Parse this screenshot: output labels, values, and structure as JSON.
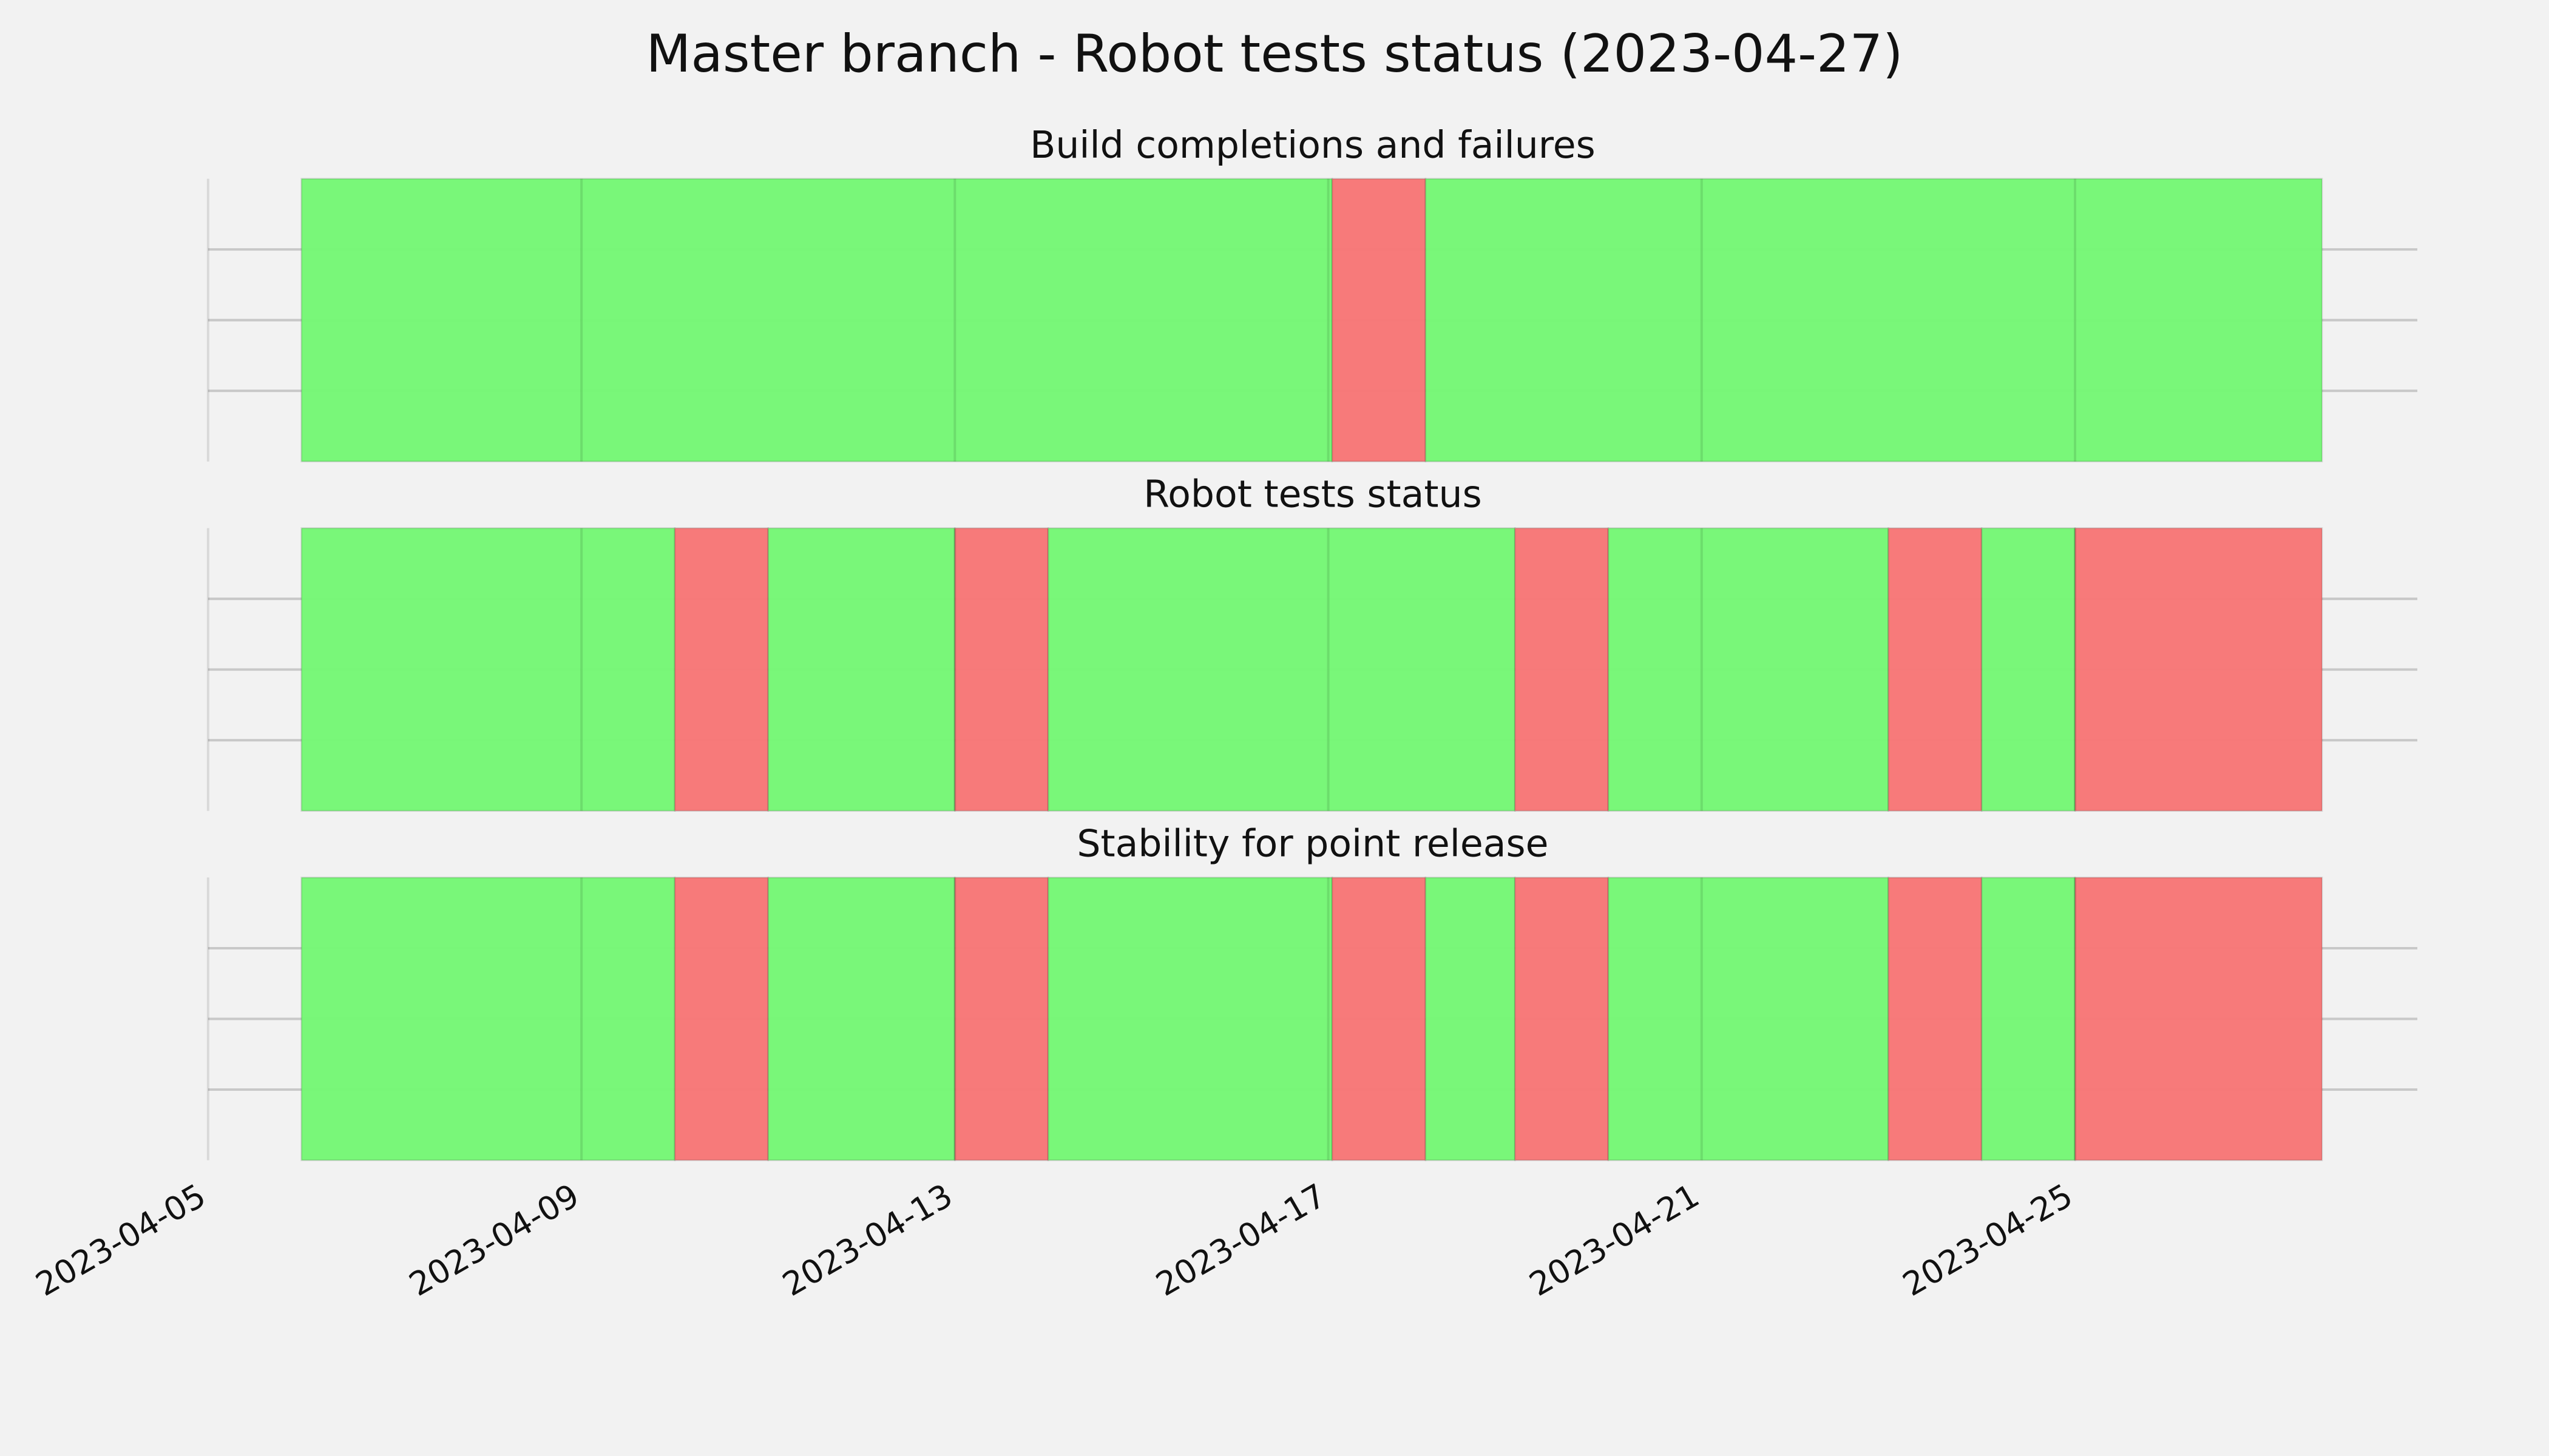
{
  "title": "Master branch - Robot tests status (2023-04-27)",
  "chart_data": [
    {
      "type": "timeline",
      "title": "Build completions and failures",
      "segments": [
        {
          "start": "2023-04-06",
          "end": "2023-04-17T01:00",
          "color": "#76f776"
        },
        {
          "start": "2023-04-17T01:00",
          "end": "2023-04-18T01:00",
          "color": "#f77777"
        },
        {
          "start": "2023-04-18T01:00",
          "end": "2023-04-27T15:30",
          "color": "#76f776"
        }
      ],
      "xlim": [
        "2023-04-05",
        "2023-04-28T16:00"
      ],
      "xticks": [
        "2023-04-05",
        "2023-04-09",
        "2023-04-13",
        "2023-04-17",
        "2023-04-21",
        "2023-04-25"
      ],
      "ylim": [
        0,
        4
      ],
      "yticks": [
        1,
        2,
        3
      ],
      "grid": true
    },
    {
      "type": "timeline",
      "title": "Robot tests status",
      "segments": [
        {
          "start": "2023-04-06",
          "end": "2023-04-10",
          "color": "#76f776"
        },
        {
          "start": "2023-04-10",
          "end": "2023-04-11",
          "color": "#f77777"
        },
        {
          "start": "2023-04-11",
          "end": "2023-04-13",
          "color": "#76f776"
        },
        {
          "start": "2023-04-13",
          "end": "2023-04-14",
          "color": "#f77777"
        },
        {
          "start": "2023-04-14",
          "end": "2023-04-19",
          "color": "#76f776"
        },
        {
          "start": "2023-04-19",
          "end": "2023-04-20",
          "color": "#f77777"
        },
        {
          "start": "2023-04-20",
          "end": "2023-04-23",
          "color": "#76f776"
        },
        {
          "start": "2023-04-23",
          "end": "2023-04-24",
          "color": "#f77777"
        },
        {
          "start": "2023-04-24",
          "end": "2023-04-25",
          "color": "#76f776"
        },
        {
          "start": "2023-04-25",
          "end": "2023-04-27T15:30",
          "color": "#f77777"
        }
      ],
      "xlim": [
        "2023-04-05",
        "2023-04-28T16:00"
      ],
      "xticks": [
        "2023-04-05",
        "2023-04-09",
        "2023-04-13",
        "2023-04-17",
        "2023-04-21",
        "2023-04-25"
      ],
      "ylim": [
        0,
        4
      ],
      "yticks": [
        1,
        2,
        3
      ],
      "grid": true
    },
    {
      "type": "timeline",
      "title": "Stability for point release",
      "segments": [
        {
          "start": "2023-04-06",
          "end": "2023-04-10",
          "color": "#76f776"
        },
        {
          "start": "2023-04-10",
          "end": "2023-04-11",
          "color": "#f77777"
        },
        {
          "start": "2023-04-11",
          "end": "2023-04-13",
          "color": "#76f776"
        },
        {
          "start": "2023-04-13",
          "end": "2023-04-14",
          "color": "#f77777"
        },
        {
          "start": "2023-04-14",
          "end": "2023-04-17T01:00",
          "color": "#76f776"
        },
        {
          "start": "2023-04-17T01:00",
          "end": "2023-04-18T01:00",
          "color": "#f77777"
        },
        {
          "start": "2023-04-18T01:00",
          "end": "2023-04-19",
          "color": "#76f776"
        },
        {
          "start": "2023-04-19",
          "end": "2023-04-20",
          "color": "#f77777"
        },
        {
          "start": "2023-04-20",
          "end": "2023-04-23",
          "color": "#76f776"
        },
        {
          "start": "2023-04-23",
          "end": "2023-04-24",
          "color": "#f77777"
        },
        {
          "start": "2023-04-24",
          "end": "2023-04-25",
          "color": "#76f776"
        },
        {
          "start": "2023-04-25",
          "end": "2023-04-27T15:30",
          "color": "#f77777"
        }
      ],
      "xlim": [
        "2023-04-05",
        "2023-04-28T16:00"
      ],
      "xticks": [
        "2023-04-05",
        "2023-04-09",
        "2023-04-13",
        "2023-04-17",
        "2023-04-21",
        "2023-04-25"
      ],
      "ylim": [
        0,
        4
      ],
      "yticks": [
        1,
        2,
        3
      ],
      "grid": true
    }
  ]
}
